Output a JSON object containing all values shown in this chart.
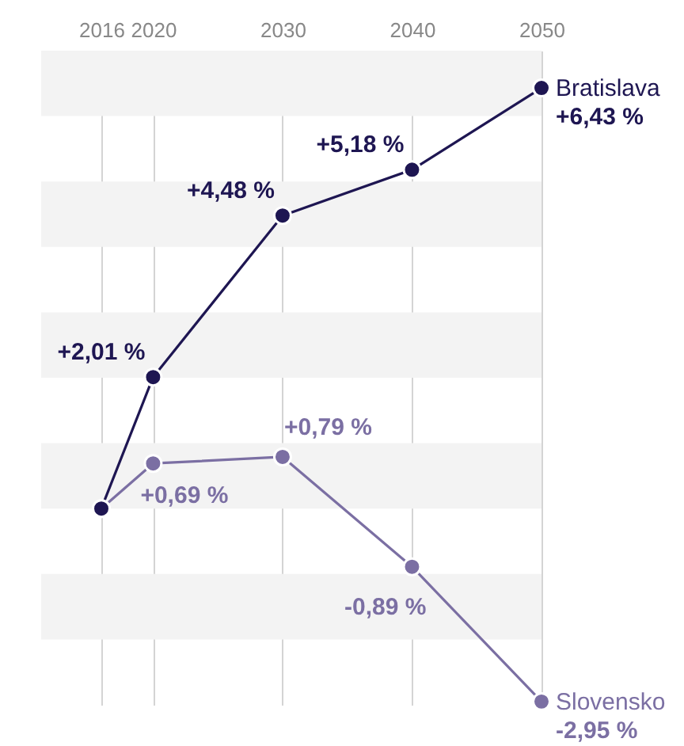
{
  "chart_data": {
    "type": "line",
    "x": [
      2016,
      2020,
      2030,
      2040,
      2050
    ],
    "series": [
      {
        "name": "Bratislava",
        "color": "#1e1652",
        "values": [
          0,
          2.01,
          4.48,
          5.18,
          6.43
        ],
        "value_labels": [
          null,
          "+2,01 %",
          "+4,48 %",
          "+5,18 %",
          "+6,43 %"
        ]
      },
      {
        "name": "Slovensko",
        "color": "#7b6fa3",
        "values": [
          0,
          0.69,
          0.79,
          -0.89,
          -2.95
        ],
        "value_labels": [
          null,
          "+0,69 %",
          "+0,79 %",
          "-0,89 %",
          "-2,95 %"
        ]
      }
    ],
    "xlim": [
      2016,
      2050
    ],
    "xticks": [
      2016,
      2020,
      2030,
      2040,
      2050
    ],
    "ylim": [
      -3,
      7
    ],
    "bands": [
      {
        "axis": "y",
        "from": 6,
        "to": 7,
        "color": "#f3f3f3"
      },
      {
        "axis": "y",
        "from": 4,
        "to": 5,
        "color": "#f3f3f3"
      },
      {
        "axis": "y",
        "from": 2,
        "to": 3,
        "color": "#f3f3f3"
      },
      {
        "axis": "y",
        "from": 0,
        "to": 1,
        "color": "#f3f3f3"
      },
      {
        "axis": "y",
        "from": -2,
        "to": -1,
        "color": "#f3f3f3"
      }
    ],
    "grid": "x",
    "marker": "circle",
    "tick_labels": "x"
  }
}
